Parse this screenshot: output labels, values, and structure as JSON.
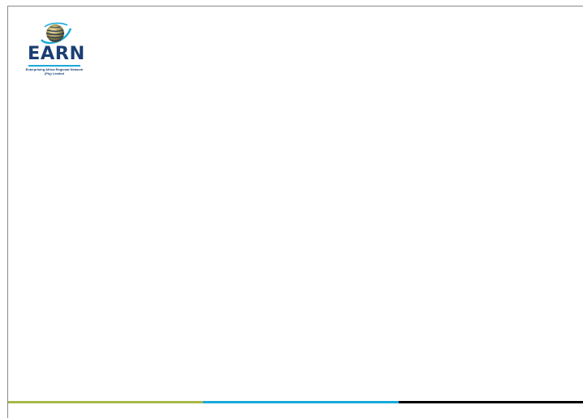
{
  "logo": {
    "wordmark": "EARN",
    "tagline_line1": "Enterprising Africa Regional Network",
    "tagline_line2": "(Pty) Limited"
  },
  "footer_bar_colors": [
    "#a8b84a",
    "#1aa8d9",
    "#000000"
  ],
  "brand_colors": {
    "navy": "#1b3f73",
    "cyan": "#1aa8d9",
    "olive": "#a8b84a"
  }
}
